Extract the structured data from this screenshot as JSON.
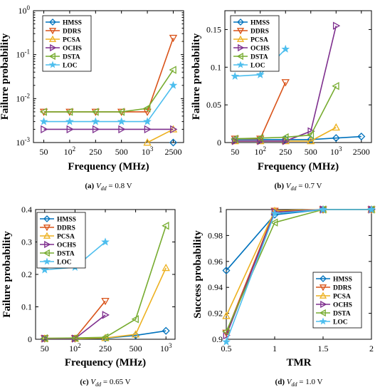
{
  "chart_data": [
    {
      "type": "line",
      "x_positions": [
        0,
        1,
        2,
        3,
        4,
        5
      ],
      "xtick_labels": [
        "50",
        "10^2",
        "250",
        "500",
        "10^3",
        "2500"
      ],
      "xlabel": "Frequency (MHz)",
      "ylabel": "Failure probability",
      "yscale": "log",
      "ylim": [
        0.001,
        1
      ],
      "ytick_values": [
        0.001,
        0.01,
        0.1,
        1
      ],
      "ytick_labels": [
        "10^-3",
        "10^-2",
        "10^-1",
        "10^0"
      ],
      "legend_position": "top-left",
      "caption_prefix": "(a) ",
      "caption_var": "V",
      "caption_sub": "dd",
      "caption_suffix": " = 0.8 V",
      "series": [
        {
          "name": "HMSS",
          "color": "#0072BD",
          "marker": "diamond",
          "points": [
            [
              5,
              0.001
            ]
          ]
        },
        {
          "name": "DDRS",
          "color": "#D95319",
          "marker": "triangle-down",
          "points": [
            [
              0,
              0.005
            ],
            [
              1,
              0.005
            ],
            [
              2,
              0.005
            ],
            [
              3,
              0.005
            ],
            [
              4,
              0.005
            ],
            [
              5,
              0.24
            ]
          ]
        },
        {
          "name": "PCSA",
          "color": "#EDB120",
          "marker": "triangle-up",
          "points": [
            [
              4,
              0.001
            ],
            [
              5,
              0.002
            ]
          ]
        },
        {
          "name": "OCHS",
          "color": "#7E2F8E",
          "marker": "triangle-right",
          "points": [
            [
              0,
              0.002
            ],
            [
              1,
              0.002
            ],
            [
              2,
              0.002
            ],
            [
              3,
              0.002
            ],
            [
              4,
              0.002
            ],
            [
              5,
              0.002
            ]
          ]
        },
        {
          "name": "DSTA",
          "color": "#77AC30",
          "marker": "triangle-left",
          "points": [
            [
              0,
              0.005
            ],
            [
              1,
              0.005
            ],
            [
              2,
              0.005
            ],
            [
              3,
              0.005
            ],
            [
              4,
              0.006
            ],
            [
              5,
              0.045
            ]
          ]
        },
        {
          "name": "LOC",
          "color": "#4DBEEE",
          "marker": "star",
          "points": [
            [
              0,
              0.003
            ],
            [
              1,
              0.003
            ],
            [
              2,
              0.003
            ],
            [
              3,
              0.003
            ],
            [
              4,
              0.003
            ],
            [
              5,
              0.02
            ]
          ]
        }
      ]
    },
    {
      "type": "line",
      "x_positions": [
        0,
        1,
        2,
        3,
        4,
        5
      ],
      "xtick_labels": [
        "50",
        "10^2",
        "250",
        "500",
        "10^3",
        "2500"
      ],
      "xlabel": "Frequency (MHz)",
      "ylabel": "Failure probability",
      "yscale": "linear",
      "ylim": [
        0,
        0.175
      ],
      "ytick_values": [
        0,
        0.05,
        0.1,
        0.15
      ],
      "ytick_labels": [
        "0",
        "0.05",
        "0.1",
        "0.15"
      ],
      "legend_position": "top-right",
      "caption_prefix": "(b) ",
      "caption_var": "V",
      "caption_sub": "dd",
      "caption_suffix": " = 0.7 V",
      "series": [
        {
          "name": "HMSS",
          "color": "#0072BD",
          "marker": "diamond",
          "points": [
            [
              0,
              0.004
            ],
            [
              1,
              0.004
            ],
            [
              2,
              0.004
            ],
            [
              3,
              0.004
            ],
            [
              4,
              0.006
            ],
            [
              5,
              0.008
            ]
          ]
        },
        {
          "name": "DDRS",
          "color": "#D95319",
          "marker": "triangle-down",
          "points": [
            [
              0,
              0.005
            ],
            [
              1,
              0.005
            ],
            [
              2,
              0.08
            ]
          ]
        },
        {
          "name": "PCSA",
          "color": "#EDB120",
          "marker": "triangle-up",
          "points": [
            [
              0,
              0.002
            ],
            [
              1,
              0.002
            ],
            [
              2,
              0.002
            ],
            [
              3,
              0.002
            ],
            [
              4,
              0.02
            ]
          ]
        },
        {
          "name": "OCHS",
          "color": "#7E2F8E",
          "marker": "triangle-right",
          "points": [
            [
              0,
              0.002
            ],
            [
              1,
              0.002
            ],
            [
              2,
              0.002
            ],
            [
              3,
              0.015
            ],
            [
              4,
              0.155
            ]
          ]
        },
        {
          "name": "DSTA",
          "color": "#77AC30",
          "marker": "triangle-left",
          "points": [
            [
              0,
              0.005
            ],
            [
              1,
              0.006
            ],
            [
              2,
              0.007
            ],
            [
              3,
              0.01
            ],
            [
              4,
              0.075
            ]
          ]
        },
        {
          "name": "LOC",
          "color": "#4DBEEE",
          "marker": "star",
          "points": [
            [
              0,
              0.088
            ],
            [
              1,
              0.09
            ],
            [
              2,
              0.124
            ]
          ]
        }
      ]
    },
    {
      "type": "line",
      "x_positions": [
        0,
        1,
        2,
        3,
        4
      ],
      "xtick_labels": [
        "50",
        "10^2",
        "250",
        "500",
        "10^3"
      ],
      "xlabel": "Frequency (MHz)",
      "ylabel": "Failure probability",
      "yscale": "linear",
      "ylim": [
        0,
        0.4
      ],
      "ytick_values": [
        0,
        0.1,
        0.2,
        0.3,
        0.4
      ],
      "ytick_labels": [
        "0",
        "0.1",
        "0.2",
        "0.3",
        "0.4"
      ],
      "legend_position": "top-left",
      "caption_prefix": "(c) ",
      "caption_var": "V",
      "caption_sub": "dd",
      "caption_suffix": " = 0.65 V",
      "series": [
        {
          "name": "HMSS",
          "color": "#0072BD",
          "marker": "diamond",
          "points": [
            [
              0,
              0.002
            ],
            [
              1,
              0.002
            ],
            [
              2,
              0.003
            ],
            [
              3,
              0.012
            ],
            [
              4,
              0.026
            ]
          ]
        },
        {
          "name": "DDRS",
          "color": "#D95319",
          "marker": "triangle-down",
          "points": [
            [
              0,
              0.003
            ],
            [
              1,
              0.003
            ],
            [
              2,
              0.118
            ]
          ]
        },
        {
          "name": "PCSA",
          "color": "#EDB120",
          "marker": "triangle-up",
          "points": [
            [
              0,
              0.002
            ],
            [
              1,
              0.002
            ],
            [
              2,
              0.004
            ],
            [
              3,
              0.015
            ],
            [
              4,
              0.22
            ]
          ]
        },
        {
          "name": "OCHS",
          "color": "#7E2F8E",
          "marker": "triangle-right",
          "points": [
            [
              0,
              0.002
            ],
            [
              1,
              0.002
            ],
            [
              2,
              0.075
            ]
          ]
        },
        {
          "name": "DSTA",
          "color": "#77AC30",
          "marker": "triangle-left",
          "points": [
            [
              0,
              0.003
            ],
            [
              1,
              0.004
            ],
            [
              2,
              0.006
            ],
            [
              3,
              0.062
            ],
            [
              4,
              0.35
            ]
          ]
        },
        {
          "name": "LOC",
          "color": "#4DBEEE",
          "marker": "star",
          "points": [
            [
              0,
              0.214
            ],
            [
              1,
              0.222
            ],
            [
              2,
              0.3
            ]
          ]
        }
      ]
    },
    {
      "type": "line",
      "x_positions": [
        0.5,
        1,
        1.5,
        2
      ],
      "xtick_labels": [
        "0.5",
        "1",
        "1.5",
        "2"
      ],
      "xlabel": "TMR",
      "ylabel": "Success probability",
      "yscale": "linear",
      "ylim": [
        0.9,
        1.0
      ],
      "ytick_values": [
        0.9,
        0.92,
        0.94,
        0.96,
        0.98,
        1.0
      ],
      "ytick_labels": [
        "0.9",
        "0.92",
        "0.94",
        "0.96",
        "0.98",
        "1"
      ],
      "legend_position": "bottom-right",
      "caption_prefix": "(d) ",
      "caption_var": "V",
      "caption_sub": "dd",
      "caption_suffix": " = 1.0 V",
      "series": [
        {
          "name": "HMSS",
          "color": "#0072BD",
          "marker": "diamond",
          "points": [
            [
              0.5,
              0.953
            ],
            [
              1,
              0.996
            ],
            [
              1.5,
              1.0
            ],
            [
              2,
              1.0
            ]
          ]
        },
        {
          "name": "DDRS",
          "color": "#D95319",
          "marker": "triangle-down",
          "points": [
            [
              0.5,
              0.905
            ],
            [
              1,
              0.999
            ],
            [
              1.5,
              1.0
            ],
            [
              2,
              1.0
            ]
          ]
        },
        {
          "name": "PCSA",
          "color": "#EDB120",
          "marker": "triangle-up",
          "points": [
            [
              0.5,
              0.918
            ],
            [
              1,
              0.999
            ],
            [
              1.5,
              1.0
            ],
            [
              2,
              1.0
            ]
          ]
        },
        {
          "name": "OCHS",
          "color": "#7E2F8E",
          "marker": "triangle-right",
          "points": [
            [
              0.5,
              0.903
            ],
            [
              1,
              0.998
            ],
            [
              1.5,
              1.0
            ],
            [
              2,
              1.0
            ]
          ]
        },
        {
          "name": "DSTA",
          "color": "#77AC30",
          "marker": "triangle-left",
          "points": [
            [
              0.5,
              0.906
            ],
            [
              1,
              0.99
            ],
            [
              1.5,
              1.0
            ],
            [
              2,
              1.0
            ]
          ]
        },
        {
          "name": "LOC",
          "color": "#4DBEEE",
          "marker": "star",
          "points": [
            [
              0.5,
              0.898
            ],
            [
              1,
              0.997
            ],
            [
              1.5,
              1.0
            ],
            [
              2,
              1.0
            ]
          ]
        }
      ]
    }
  ]
}
